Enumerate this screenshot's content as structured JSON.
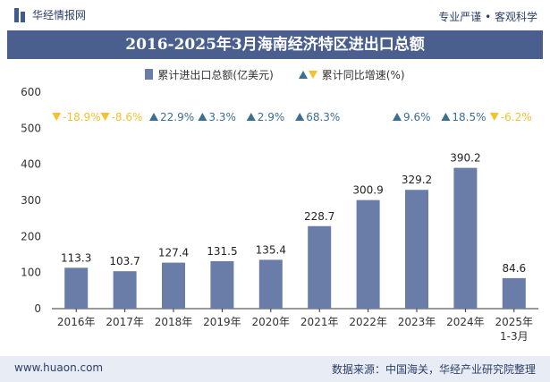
{
  "header": {
    "brand": "华经情报网",
    "tagline": "专业严谨 • 客观科学"
  },
  "colors": {
    "bar": "#6a7ca8",
    "up": "#3a6f93",
    "down": "#f2c230",
    "title_bg": "#4b5f8f"
  },
  "chart_data": {
    "type": "bar",
    "title": "2016-2025年3月海南经济特区进出口总额",
    "legend": [
      {
        "label": "累计进出口总额(亿美元)",
        "icon": "bar-swatch"
      },
      {
        "label": "累计同比增速(%)",
        "icon": "up-down-triangles"
      }
    ],
    "categories": [
      "2016年",
      "2017年",
      "2018年",
      "2019年",
      "2020年",
      "2021年",
      "2022年",
      "2023年",
      "2024年",
      "2025年\n1-3月"
    ],
    "series": [
      {
        "name": "累计进出口总额(亿美元)",
        "values": [
          113.3,
          103.7,
          127.4,
          131.5,
          135.4,
          228.7,
          300.9,
          329.2,
          390.2,
          84.6
        ]
      }
    ],
    "value_labels": [
      "113.3",
      "103.7",
      "127.4",
      "131.5",
      "135.4",
      "228.7",
      "300.9",
      "329.2",
      "390.2",
      "84.6"
    ],
    "growth": [
      {
        "dir": "down",
        "label": "-18.9%"
      },
      {
        "dir": "down",
        "label": "-8.6%"
      },
      {
        "dir": "up",
        "label": "22.9%"
      },
      {
        "dir": "up",
        "label": "3.3%"
      },
      {
        "dir": "up",
        "label": "2.9%"
      },
      {
        "dir": "up",
        "label": "68.3%"
      },
      null,
      {
        "dir": "up",
        "label": "9.6%"
      },
      {
        "dir": "up",
        "label": "18.5%"
      },
      {
        "dir": "down",
        "label": "-6.2%"
      }
    ],
    "ylim": [
      0,
      600
    ],
    "yticks": [
      "0",
      "100",
      "200",
      "300",
      "400",
      "500",
      "600"
    ],
    "grid": false
  },
  "footer": {
    "website": "www.huaon.com",
    "source": "数据来源：中国海关，华经产业研究院整理"
  }
}
